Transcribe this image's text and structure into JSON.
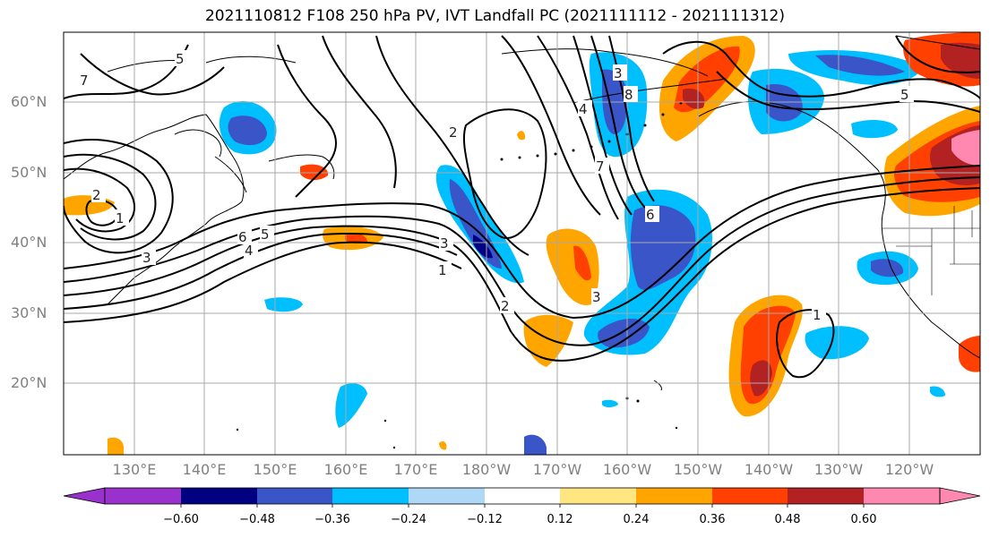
{
  "title": "2021110812 F108 250 hPa PV, IVT Landfall PC (2021111112 - 2021111312)",
  "lat_labels": [
    "60°N",
    "50°N",
    "40°N",
    "30°N",
    "20°N"
  ],
  "lon_labels": [
    "130°E",
    "140°E",
    "150°E",
    "160°E",
    "170°E",
    "180°W",
    "170°W",
    "160°W",
    "150°W",
    "140°W",
    "130°W",
    "120°W"
  ],
  "contour_labels": [
    "5",
    "7",
    "2",
    "1",
    "3",
    "6",
    "5",
    "4",
    "2",
    "3",
    "1",
    "2",
    "4",
    "8",
    "3",
    "7",
    "6",
    "1",
    "3",
    "5"
  ],
  "colorbar": {
    "tick_labels": [
      "−0.60",
      "−0.48",
      "−0.36",
      "−0.24",
      "−0.12",
      "0.12",
      "0.24",
      "0.36",
      "0.48",
      "0.60"
    ],
    "colors": [
      "#9932cc",
      "#000080",
      "#3a55c8",
      "#00bfff",
      "#add8f6",
      "#ffffff",
      "#ffe680",
      "#ffa500",
      "#ff4000",
      "#b22222",
      "#ff88b0"
    ]
  },
  "map": {
    "lon_range": [
      "120°E",
      "115°W"
    ],
    "lat_range": [
      "10°N",
      "70°N"
    ]
  }
}
